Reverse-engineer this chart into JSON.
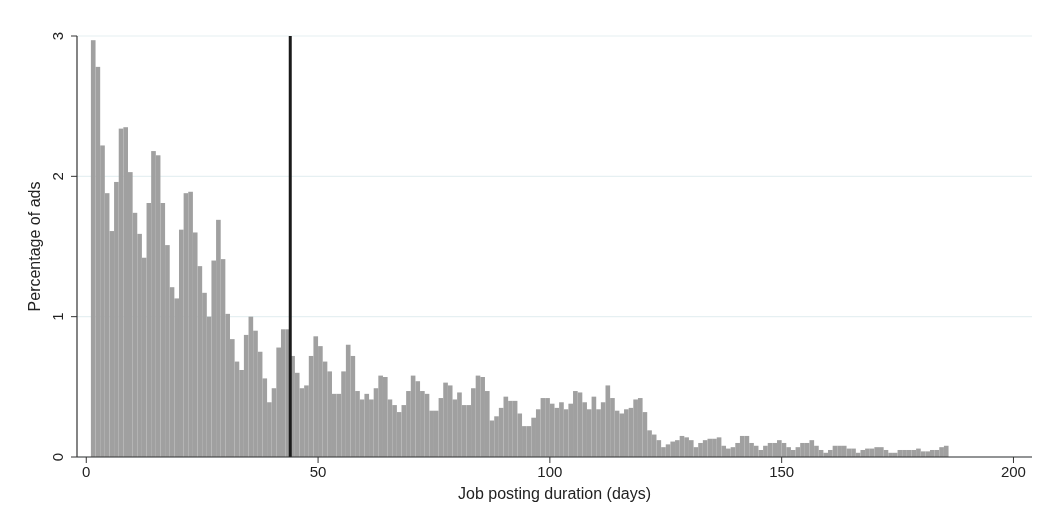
{
  "chart_data": {
    "type": "histogram",
    "xlabel": "Job posting duration (days)",
    "ylabel": "Percentage of ads",
    "color": "#a0a0a0",
    "bins": [
      1,
      2,
      3,
      4,
      5,
      6,
      7,
      8,
      9,
      10,
      11,
      12,
      13,
      14,
      15,
      16,
      17,
      18,
      19,
      20,
      21,
      22,
      23,
      24,
      25,
      26,
      27,
      28,
      29,
      30,
      31,
      32,
      33,
      34,
      35,
      36,
      37,
      38,
      39,
      40,
      41,
      42,
      43,
      44,
      45,
      46,
      47,
      48,
      49,
      50,
      51,
      52,
      53,
      54,
      55,
      56,
      57,
      58,
      59,
      60,
      61,
      62,
      63,
      64,
      65,
      66,
      67,
      68,
      69,
      70,
      71,
      72,
      73,
      74,
      75,
      76,
      77,
      78,
      79,
      80,
      81,
      82,
      83,
      84,
      85,
      86,
      87,
      88,
      89,
      90,
      91,
      92,
      93,
      94,
      95,
      96,
      97,
      98,
      99,
      100,
      101,
      102,
      103,
      104,
      105,
      106,
      107,
      108,
      109,
      110,
      111,
      112,
      113,
      114,
      115,
      116,
      117,
      118,
      119,
      120,
      121,
      122,
      123,
      124,
      125,
      126,
      127,
      128,
      129,
      130,
      131,
      132,
      133,
      134,
      135,
      136,
      137,
      138,
      139,
      140,
      141,
      142,
      143,
      144,
      145,
      146,
      147,
      148,
      149,
      150,
      151,
      152,
      153,
      154,
      155,
      156,
      157,
      158,
      159,
      160,
      161,
      162,
      163,
      164,
      165,
      166,
      167,
      168,
      169,
      170,
      171,
      172,
      173,
      174,
      175,
      176,
      177,
      178,
      179,
      180,
      181,
      182,
      183,
      184,
      185,
      186
    ],
    "values": [
      2.97,
      2.78,
      2.22,
      1.88,
      1.61,
      1.96,
      2.34,
      2.35,
      2.03,
      1.74,
      1.59,
      1.42,
      1.81,
      2.18,
      2.15,
      1.81,
      1.51,
      1.21,
      1.13,
      1.62,
      1.88,
      1.89,
      1.6,
      1.36,
      1.17,
      1.0,
      1.4,
      1.69,
      1.41,
      1.02,
      0.84,
      0.68,
      0.62,
      0.87,
      1.0,
      0.9,
      0.75,
      0.56,
      0.39,
      0.49,
      0.78,
      0.91,
      0.91,
      0.72,
      0.6,
      0.49,
      0.51,
      0.72,
      0.86,
      0.79,
      0.68,
      0.61,
      0.45,
      0.45,
      0.61,
      0.8,
      0.72,
      0.47,
      0.41,
      0.45,
      0.41,
      0.49,
      0.58,
      0.57,
      0.41,
      0.37,
      0.32,
      0.37,
      0.47,
      0.58,
      0.54,
      0.47,
      0.45,
      0.33,
      0.33,
      0.42,
      0.53,
      0.51,
      0.41,
      0.46,
      0.37,
      0.37,
      0.49,
      0.58,
      0.57,
      0.47,
      0.26,
      0.29,
      0.35,
      0.43,
      0.4,
      0.4,
      0.31,
      0.22,
      0.22,
      0.28,
      0.34,
      0.42,
      0.42,
      0.38,
      0.35,
      0.39,
      0.34,
      0.38,
      0.47,
      0.46,
      0.39,
      0.34,
      0.43,
      0.34,
      0.39,
      0.51,
      0.42,
      0.33,
      0.31,
      0.34,
      0.35,
      0.41,
      0.42,
      0.32,
      0.19,
      0.16,
      0.12,
      0.07,
      0.09,
      0.11,
      0.12,
      0.15,
      0.14,
      0.12,
      0.07,
      0.1,
      0.12,
      0.13,
      0.13,
      0.14,
      0.08,
      0.06,
      0.07,
      0.1,
      0.15,
      0.15,
      0.1,
      0.08,
      0.05,
      0.08,
      0.1,
      0.1,
      0.12,
      0.1,
      0.07,
      0.05,
      0.07,
      0.1,
      0.1,
      0.12,
      0.08,
      0.05,
      0.03,
      0.05,
      0.08,
      0.08,
      0.08,
      0.06,
      0.06,
      0.03,
      0.05,
      0.06,
      0.06,
      0.07,
      0.07,
      0.05,
      0.03,
      0.03,
      0.05,
      0.05,
      0.05,
      0.05,
      0.06,
      0.04,
      0.04,
      0.05,
      0.05,
      0.07,
      0.08
    ],
    "xlim": [
      -2,
      204
    ],
    "xticks": [
      0,
      50,
      100,
      150,
      200
    ],
    "ylim": [
      0,
      3
    ],
    "yticks": [
      0,
      1,
      2,
      3
    ],
    "grid": "y",
    "ref_lines": [
      {
        "axis": "x",
        "value": 44,
        "color": "#1a1a1a"
      }
    ]
  }
}
